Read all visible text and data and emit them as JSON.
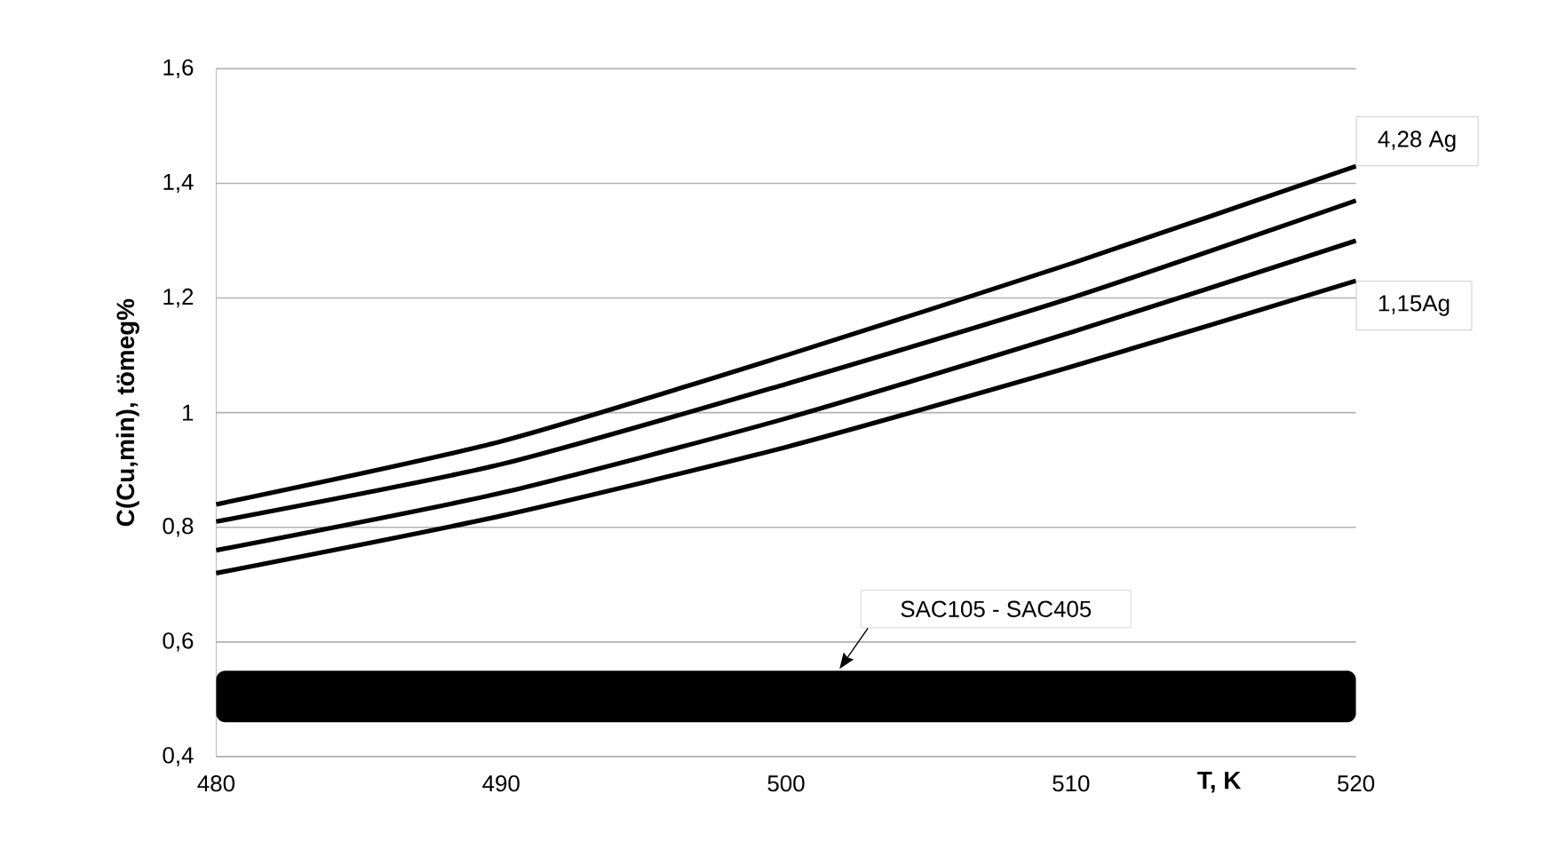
{
  "chart_data": {
    "type": "line",
    "xlabel": "T, K",
    "ylabel": "C(Cu,min), tömeg%",
    "x": [
      480,
      490,
      500,
      510,
      520
    ],
    "series": [
      {
        "name": "4,28 Ag",
        "color": "#000000",
        "values": [
          0.84,
          0.95,
          1.1,
          1.26,
          1.43
        ]
      },
      {
        "color": "#000000",
        "values": [
          0.81,
          0.91,
          1.05,
          1.2,
          1.37
        ]
      },
      {
        "color": "#000000",
        "values": [
          0.76,
          0.86,
          0.99,
          1.14,
          1.3
        ]
      },
      {
        "name": "1,15Ag",
        "color": "#000000",
        "values": [
          0.72,
          0.82,
          0.94,
          1.08,
          1.23
        ]
      }
    ],
    "xlim": [
      480,
      520
    ],
    "ylim": [
      0.4,
      1.6
    ],
    "xticks": [
      480,
      490,
      500,
      510,
      520
    ],
    "yticks": [
      {
        "value": 0.4,
        "label": "0,4"
      },
      {
        "value": 0.6,
        "label": "0,6"
      },
      {
        "value": 0.8,
        "label": "0,8"
      },
      {
        "value": 1,
        "label": "1"
      },
      {
        "value": 1.2,
        "label": "1,2"
      },
      {
        "value": 1.4,
        "label": "1,4"
      },
      {
        "value": 1.6,
        "label": "1,6"
      }
    ],
    "grid": "y",
    "bands": [
      {
        "axis": "y",
        "from": 0.46,
        "to": 0.55,
        "label": "SAC105 - SAC405",
        "color": "#000000"
      }
    ],
    "line_style": "solid",
    "marker": "none"
  }
}
